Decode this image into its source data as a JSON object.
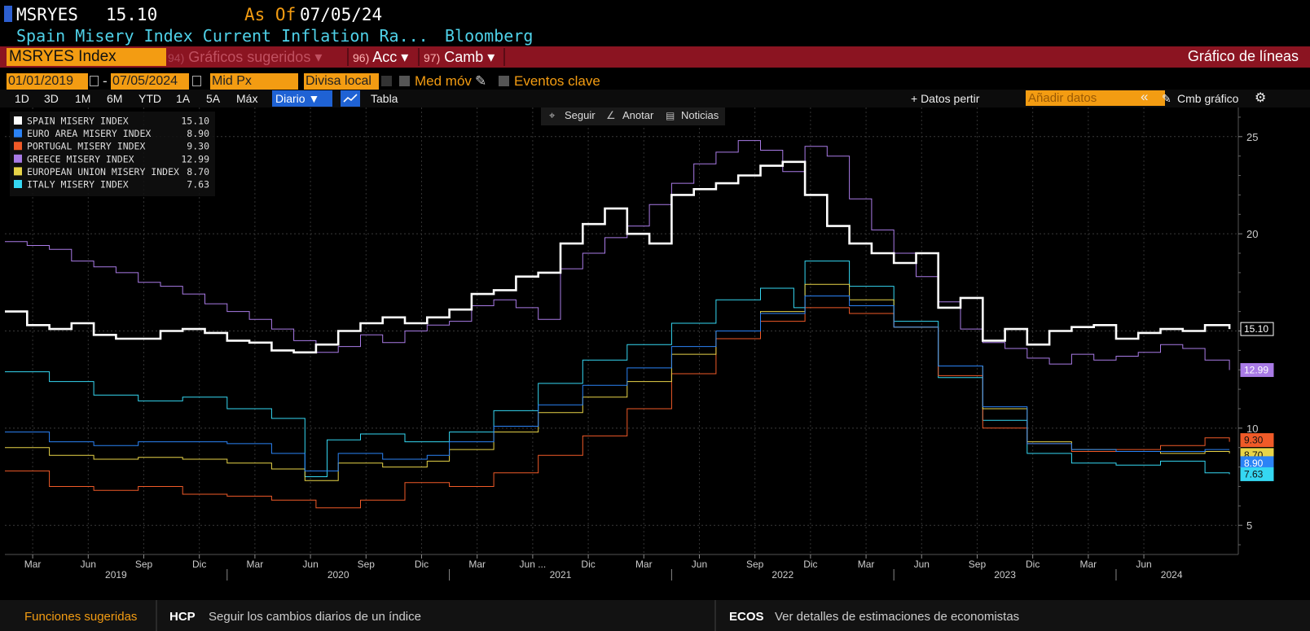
{
  "header": {
    "ticker_short": "MSRYES",
    "last_value": "15.10",
    "as_of_label": "As Of",
    "as_of_date": "07/05/24",
    "description": "Spain Misery Index Current Inflation Ra...",
    "source": "Bloomberg"
  },
  "toolbar": {
    "ticker_field": "MSRYES Index",
    "menu_suggested_num": "94)",
    "menu_suggested": "Gráficos sugeridos",
    "menu_actions_num": "96)",
    "menu_actions": "Acc",
    "menu_change_num": "97)",
    "menu_change": "Camb",
    "chart_type_title": "Gráfico de líneas"
  },
  "options": {
    "start_date": "01/01/2019",
    "end_date": "07/05/2024",
    "date_sep": "-",
    "price_field": "Mid Px",
    "currency": "Divisa local",
    "moving_avg": "Med móv",
    "key_events": "Eventos clave"
  },
  "periods": [
    "1D",
    "3D",
    "1M",
    "6M",
    "YTD",
    "1A",
    "5A",
    "Máx"
  ],
  "frequency": "Diario ▼",
  "table_tab": "Tabla",
  "right_tools": {
    "data_from": "+ Datos pertir",
    "add_data_placeholder": "Añadir datos",
    "collapse": "«",
    "change_chart": "Cmb gráfico"
  },
  "chart_tools": {
    "follow": "Seguir",
    "annotate": "Anotar",
    "news": "Noticias"
  },
  "bottom_bar": {
    "suggested": "Funciones sugeridas",
    "hcp_code": "HCP",
    "hcp_text": "Seguir los cambios diarios de un índice",
    "ecos_code": "ECOS",
    "ecos_text": "Ver detalles de estimaciones de economistas"
  },
  "chart_data": {
    "type": "line",
    "y_range": [
      3.5,
      26.5
    ],
    "y_ticks": [
      5,
      10,
      15,
      20,
      25
    ],
    "x_range": [
      2019.0,
      2024.55
    ],
    "x_month_ticks": [
      {
        "x": 2019.125,
        "label": "Mar"
      },
      {
        "x": 2019.375,
        "label": "Jun"
      },
      {
        "x": 2019.625,
        "label": "Sep"
      },
      {
        "x": 2019.875,
        "label": "Dic"
      },
      {
        "x": 2020.125,
        "label": "Mar"
      },
      {
        "x": 2020.375,
        "label": "Jun"
      },
      {
        "x": 2020.625,
        "label": "Sep"
      },
      {
        "x": 2020.875,
        "label": "Dic"
      },
      {
        "x": 2021.125,
        "label": "Mar"
      },
      {
        "x": 2021.375,
        "label": "Jun ..."
      },
      {
        "x": 2021.625,
        "label": "Dic"
      },
      {
        "x": 2021.875,
        "label": "Mar"
      },
      {
        "x": 2022.125,
        "label": "Jun"
      },
      {
        "x": 2022.375,
        "label": "Sep"
      },
      {
        "x": 2022.625,
        "label": "Dic"
      },
      {
        "x": 2022.875,
        "label": "Mar"
      },
      {
        "x": 2023.125,
        "label": "Jun"
      },
      {
        "x": 2023.375,
        "label": "Sep"
      },
      {
        "x": 2023.625,
        "label": "Dic"
      },
      {
        "x": 2023.875,
        "label": "Mar"
      },
      {
        "x": 2024.125,
        "label": "Jun"
      }
    ],
    "x_years": [
      {
        "x": 2019.5,
        "label": "2019"
      },
      {
        "x": 2020.5,
        "label": "2020"
      },
      {
        "x": 2021.5,
        "label": "2021"
      },
      {
        "x": 2022.5,
        "label": "2022"
      },
      {
        "x": 2023.5,
        "label": "2023"
      },
      {
        "x": 2024.25,
        "label": "2024"
      }
    ],
    "grid": true,
    "legend_position": "top-left",
    "series": [
      {
        "name": "SPAIN MISERY INDEX",
        "last": "15.10",
        "color": "#ffffff",
        "width": 2.6,
        "x": [
          2019.0,
          2019.1,
          2019.2,
          2019.3,
          2019.4,
          2019.5,
          2019.6,
          2019.7,
          2019.8,
          2019.9,
          2020.0,
          2020.1,
          2020.2,
          2020.3,
          2020.4,
          2020.5,
          2020.6,
          2020.7,
          2020.8,
          2020.9,
          2021.0,
          2021.1,
          2021.2,
          2021.3,
          2021.4,
          2021.5,
          2021.6,
          2021.7,
          2021.8,
          2021.9,
          2022.0,
          2022.1,
          2022.2,
          2022.3,
          2022.4,
          2022.5,
          2022.6,
          2022.7,
          2022.8,
          2022.9,
          2023.0,
          2023.1,
          2023.2,
          2023.3,
          2023.4,
          2023.5,
          2023.6,
          2023.7,
          2023.8,
          2023.9,
          2024.0,
          2024.1,
          2024.2,
          2024.3,
          2024.4,
          2024.51
        ],
        "values": [
          16.0,
          15.3,
          15.1,
          15.4,
          14.8,
          14.6,
          14.6,
          15.0,
          15.1,
          14.9,
          14.5,
          14.4,
          14.0,
          13.9,
          14.3,
          15.0,
          15.4,
          15.7,
          15.4,
          15.7,
          16.1,
          16.9,
          17.1,
          17.8,
          18.0,
          19.5,
          20.5,
          21.3,
          20.0,
          19.5,
          22.0,
          22.3,
          22.6,
          23.0,
          23.5,
          23.7,
          22.0,
          20.4,
          19.5,
          19.0,
          18.5,
          19.0,
          16.2,
          16.7,
          14.5,
          15.1,
          14.3,
          15.0,
          15.2,
          15.3,
          14.6,
          14.9,
          15.1,
          15.0,
          15.3,
          15.1
        ]
      },
      {
        "name": "EURO AREA MISERY INDEX",
        "last": "8.90",
        "color": "#2b83f6",
        "width": 1,
        "x": [
          2019.0,
          2019.2,
          2019.4,
          2019.6,
          2019.8,
          2020.0,
          2020.2,
          2020.35,
          2020.5,
          2020.7,
          2020.9,
          2021.0,
          2021.2,
          2021.4,
          2021.6,
          2021.8,
          2022.0,
          2022.2,
          2022.4,
          2022.6,
          2022.8,
          2023.0,
          2023.2,
          2023.4,
          2023.6,
          2023.8,
          2024.0,
          2024.2,
          2024.4,
          2024.51
        ],
        "values": [
          9.8,
          9.3,
          9.1,
          9.3,
          9.3,
          9.2,
          8.7,
          7.8,
          8.7,
          8.4,
          8.6,
          9.3,
          10.1,
          11.2,
          12.2,
          13.1,
          14.2,
          15.0,
          15.9,
          16.8,
          16.3,
          15.2,
          13.2,
          11.1,
          9.2,
          8.9,
          8.8,
          8.8,
          8.9,
          8.9
        ]
      },
      {
        "name": "PORTUGAL MISERY INDEX",
        "last": "9.30",
        "color": "#f05a28",
        "width": 1,
        "x": [
          2019.0,
          2019.2,
          2019.4,
          2019.6,
          2019.8,
          2020.0,
          2020.2,
          2020.4,
          2020.6,
          2020.8,
          2021.0,
          2021.2,
          2021.4,
          2021.6,
          2021.8,
          2022.0,
          2022.2,
          2022.4,
          2022.6,
          2022.8,
          2023.0,
          2023.2,
          2023.4,
          2023.6,
          2023.8,
          2024.0,
          2024.2,
          2024.4,
          2024.51
        ],
        "values": [
          7.8,
          7.0,
          6.8,
          7.0,
          6.6,
          6.5,
          6.3,
          5.9,
          6.3,
          7.2,
          7.0,
          7.7,
          8.6,
          9.6,
          11.0,
          12.8,
          14.6,
          15.5,
          16.2,
          15.9,
          15.2,
          12.7,
          10.0,
          9.2,
          8.8,
          8.9,
          9.1,
          9.5,
          9.3
        ]
      },
      {
        "name": "GREECE MISERY INDEX",
        "last": "12.99",
        "color": "#a97be6",
        "width": 1,
        "x": [
          2019.0,
          2019.1,
          2019.2,
          2019.3,
          2019.4,
          2019.5,
          2019.6,
          2019.7,
          2019.8,
          2019.9,
          2020.0,
          2020.1,
          2020.2,
          2020.3,
          2020.4,
          2020.5,
          2020.6,
          2020.7,
          2020.8,
          2020.9,
          2021.0,
          2021.1,
          2021.2,
          2021.3,
          2021.4,
          2021.5,
          2021.6,
          2021.7,
          2021.8,
          2021.9,
          2022.0,
          2022.1,
          2022.2,
          2022.3,
          2022.4,
          2022.5,
          2022.6,
          2022.7,
          2022.8,
          2022.9,
          2023.0,
          2023.1,
          2023.2,
          2023.3,
          2023.4,
          2023.5,
          2023.6,
          2023.7,
          2023.8,
          2023.9,
          2024.0,
          2024.1,
          2024.2,
          2024.3,
          2024.4,
          2024.51
        ],
        "values": [
          19.6,
          19.4,
          19.2,
          18.6,
          18.3,
          18.0,
          17.5,
          17.3,
          16.9,
          16.4,
          16.0,
          15.6,
          15.1,
          14.5,
          13.9,
          14.2,
          14.8,
          14.4,
          15.0,
          15.3,
          15.5,
          16.3,
          16.6,
          16.2,
          15.6,
          18.2,
          19.0,
          19.8,
          20.4,
          21.5,
          22.6,
          23.6,
          24.2,
          24.8,
          24.3,
          23.2,
          24.5,
          24.0,
          21.8,
          20.2,
          19.0,
          17.8,
          16.5,
          15.1,
          14.4,
          14.1,
          13.6,
          13.3,
          13.8,
          13.5,
          13.7,
          13.9,
          14.3,
          14.1,
          13.5,
          12.99
        ]
      },
      {
        "name": "EUROPEAN UNION MISERY INDEX",
        "last": "8.70",
        "color": "#e8d449",
        "width": 1,
        "x": [
          2019.0,
          2019.2,
          2019.4,
          2019.6,
          2019.8,
          2020.0,
          2020.2,
          2020.35,
          2020.5,
          2020.7,
          2020.9,
          2021.0,
          2021.2,
          2021.4,
          2021.6,
          2021.8,
          2022.0,
          2022.2,
          2022.4,
          2022.6,
          2022.8,
          2023.0,
          2023.2,
          2023.4,
          2023.6,
          2023.8,
          2024.0,
          2024.2,
          2024.4,
          2024.51
        ],
        "values": [
          9.0,
          8.6,
          8.4,
          8.5,
          8.4,
          8.2,
          7.9,
          7.3,
          8.2,
          8.0,
          8.3,
          8.9,
          9.8,
          10.8,
          11.6,
          12.4,
          13.8,
          15.0,
          16.0,
          17.4,
          16.6,
          15.2,
          13.2,
          11.0,
          9.3,
          8.9,
          8.8,
          8.7,
          8.8,
          8.7
        ]
      },
      {
        "name": "ITALY MISERY INDEX",
        "last": "7.63",
        "color": "#35d7f2",
        "width": 1,
        "x": [
          2019.0,
          2019.2,
          2019.4,
          2019.6,
          2019.8,
          2020.0,
          2020.2,
          2020.35,
          2020.45,
          2020.6,
          2020.8,
          2021.0,
          2021.2,
          2021.4,
          2021.6,
          2021.8,
          2022.0,
          2022.2,
          2022.4,
          2022.55,
          2022.6,
          2022.8,
          2023.0,
          2023.2,
          2023.4,
          2023.6,
          2023.8,
          2024.0,
          2024.2,
          2024.4,
          2024.51
        ],
        "values": [
          12.9,
          12.4,
          11.7,
          11.4,
          11.6,
          11.0,
          10.5,
          7.5,
          9.4,
          9.7,
          9.3,
          9.8,
          10.9,
          12.3,
          13.5,
          14.3,
          15.4,
          16.6,
          17.2,
          16.2,
          18.6,
          17.3,
          15.5,
          12.6,
          10.4,
          8.7,
          8.2,
          8.1,
          8.3,
          7.7,
          7.63
        ]
      }
    ]
  }
}
